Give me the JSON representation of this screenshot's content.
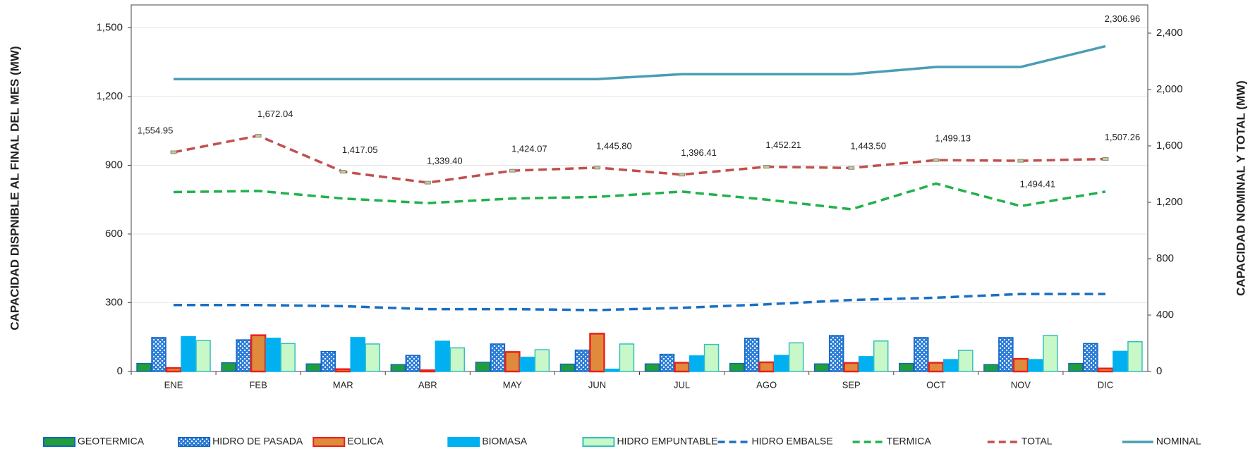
{
  "chart_data": {
    "type": "combo",
    "ylabel": "CAPACIDAD DISPNIBLE AL FINAL DEL MES (MW)",
    "y2label": "CAPACIDAD NOMINAL Y TOTAL (MW)",
    "categories": [
      "ENE",
      "FEB",
      "MAR",
      "ABR",
      "MAY",
      "JUN",
      "JUL",
      "AGO",
      "SEP",
      "OCT",
      "NOV",
      "DIC"
    ],
    "ylim": [
      0,
      1600
    ],
    "yticks": [
      0,
      300,
      600,
      900,
      {
        "value": 1200,
        "label": "1,200"
      },
      {
        "value": 1500,
        "label": "1,500"
      }
    ],
    "y2lim": [
      0,
      2600
    ],
    "y2ticks": [
      0,
      400,
      800,
      {
        "value": 1200,
        "label": "1,200"
      },
      {
        "value": 1600,
        "label": "1,600"
      },
      {
        "value": 2000,
        "label": "2,000"
      },
      {
        "value": 2400,
        "label": "2,400"
      }
    ],
    "grid": true,
    "series": [
      {
        "name": "GEOTERMICA",
        "kind": "bar",
        "color": "#1f9e3a",
        "edgecolor": "#1565c0",
        "values": [
          35,
          38,
          33,
          30,
          40,
          32,
          33,
          35,
          33,
          35,
          30,
          35
        ]
      },
      {
        "name": "HIDRO DE PASADA",
        "kind": "bar",
        "pattern": true,
        "color": "#2e7fd8",
        "edgecolor": "#1565c0",
        "values": [
          148,
          138,
          87,
          70,
          120,
          93,
          75,
          145,
          157,
          148,
          148,
          122
        ]
      },
      {
        "name": "EOLICA",
        "kind": "bar",
        "color": "#e08a3c",
        "edgecolor": "#e8221b",
        "values": [
          15,
          158,
          10,
          5,
          85,
          165,
          38,
          40,
          37,
          38,
          55,
          13
        ]
      },
      {
        "name": "BIOMASA",
        "kind": "bar",
        "color": "#00b0f0",
        "edgecolor": "#00b0f0",
        "values": [
          152,
          145,
          148,
          132,
          62,
          10,
          68,
          70,
          65,
          52,
          52,
          88
        ]
      },
      {
        "name": "HIDRO EMPUNTABLE",
        "kind": "bar",
        "color": "#c8f7c8",
        "edgecolor": "#35c0c0",
        "values": [
          135,
          122,
          120,
          103,
          95,
          120,
          118,
          125,
          133,
          92,
          157,
          130
        ]
      },
      {
        "name": "HIDRO EMBALSE",
        "kind": "line",
        "dashed": true,
        "color": "#1a6fc4",
        "values": [
          290,
          290,
          285,
          272,
          272,
          268,
          278,
          293,
          312,
          322,
          338,
          338
        ]
      },
      {
        "name": "TERMICA",
        "kind": "line",
        "dashed": true,
        "color": "#22b14c",
        "values": [
          783,
          788,
          755,
          735,
          755,
          762,
          785,
          750,
          708,
          820,
          722,
          785
        ]
      },
      {
        "name": "TOTAL",
        "kind": "line",
        "dashed": true,
        "axis": "y2",
        "color": "#c0504d",
        "values": [
          1554.95,
          1672.04,
          1417.05,
          1339.4,
          1424.07,
          1445.8,
          1396.41,
          1452.21,
          1443.5,
          1499.13,
          1494.41,
          1507.26
        ],
        "value_labels": [
          "1,554.95",
          "1,672.04",
          "1,417.05",
          "1,339.40",
          "1,424.07",
          "1,445.80",
          "1,396.41",
          "1,452.21",
          "1,443.50",
          "1,499.13",
          "1,494.41",
          "1,507.26"
        ]
      },
      {
        "name": "NOMINAL",
        "kind": "line",
        "dashed": false,
        "axis": "y2",
        "color": "#4a9db5",
        "values": [
          2074,
          2074,
          2074,
          2074,
          2074,
          2074,
          2109,
          2109,
          2109,
          2160,
          2160,
          2306.96
        ],
        "value_labels": [
          null,
          null,
          null,
          null,
          null,
          null,
          null,
          null,
          null,
          null,
          null,
          "2,306.96"
        ]
      }
    ]
  }
}
